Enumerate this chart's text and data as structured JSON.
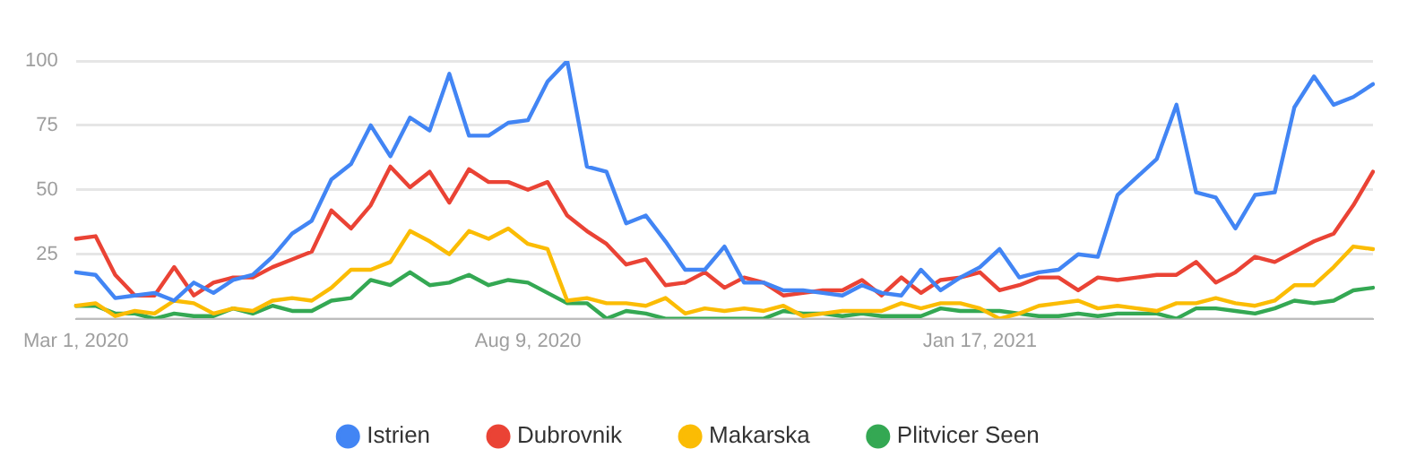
{
  "chart_data": {
    "type": "line",
    "categories": [
      "Mar 1, 2020",
      null,
      null,
      null,
      null,
      null,
      null,
      null,
      null,
      null,
      null,
      null,
      null,
      null,
      null,
      null,
      null,
      null,
      null,
      null,
      null,
      null,
      null,
      "Aug 9, 2020",
      null,
      null,
      null,
      null,
      null,
      null,
      null,
      null,
      null,
      null,
      null,
      null,
      null,
      null,
      null,
      null,
      null,
      null,
      null,
      null,
      null,
      null,
      "Jan 17, 2021",
      null,
      null,
      null,
      null,
      null,
      null,
      null,
      null,
      null,
      null,
      null,
      null,
      null,
      null,
      null,
      null,
      null,
      null,
      null,
      null
    ],
    "series": [
      {
        "name": "Istrien",
        "color": "#4285f4",
        "values": [
          18,
          17,
          8,
          9,
          10,
          7,
          14,
          10,
          15,
          17,
          24,
          33,
          38,
          54,
          60,
          75,
          63,
          78,
          73,
          95,
          71,
          71,
          76,
          77,
          92,
          100,
          59,
          57,
          37,
          40,
          30,
          19,
          19,
          28,
          14,
          14,
          11,
          11,
          10,
          9,
          13,
          10,
          9,
          19,
          11,
          16,
          20,
          27,
          16,
          18,
          19,
          25,
          24,
          48,
          55,
          62,
          83,
          49,
          47,
          35,
          48,
          49,
          82,
          94,
          83,
          86,
          91
        ]
      },
      {
        "name": "Dubrovnik",
        "color": "#ea4335",
        "values": [
          31,
          32,
          17,
          9,
          9,
          20,
          9,
          14,
          16,
          16,
          20,
          23,
          26,
          42,
          35,
          44,
          59,
          51,
          57,
          45,
          58,
          53,
          53,
          50,
          53,
          40,
          34,
          29,
          21,
          23,
          13,
          14,
          18,
          12,
          16,
          14,
          9,
          10,
          11,
          11,
          15,
          9,
          16,
          10,
          15,
          16,
          18,
          11,
          13,
          16,
          16,
          11,
          16,
          15,
          16,
          17,
          17,
          22,
          14,
          18,
          24,
          22,
          26,
          30,
          33,
          44,
          57
        ]
      },
      {
        "name": "Makarska",
        "color": "#fbbc04",
        "values": [
          5,
          6,
          1,
          3,
          2,
          7,
          6,
          2,
          4,
          3,
          7,
          8,
          7,
          12,
          19,
          19,
          22,
          34,
          30,
          25,
          34,
          31,
          35,
          29,
          27,
          7,
          8,
          6,
          6,
          5,
          8,
          2,
          4,
          3,
          4,
          3,
          5,
          1,
          2,
          3,
          3,
          3,
          6,
          4,
          6,
          6,
          4,
          0,
          2,
          5,
          6,
          7,
          4,
          5,
          4,
          3,
          6,
          6,
          8,
          6,
          5,
          7,
          13,
          13,
          20,
          28,
          27
        ]
      },
      {
        "name": "Plitvicer Seen",
        "color": "#34a853",
        "values": [
          5,
          5,
          2,
          2,
          0,
          2,
          1,
          1,
          4,
          2,
          5,
          3,
          3,
          7,
          8,
          15,
          13,
          18,
          13,
          14,
          17,
          13,
          15,
          14,
          10,
          6,
          6,
          0,
          3,
          2,
          0,
          0,
          0,
          0,
          0,
          0,
          3,
          2,
          2,
          1,
          2,
          1,
          1,
          1,
          4,
          3,
          3,
          3,
          2,
          1,
          1,
          2,
          1,
          2,
          2,
          2,
          0,
          4,
          4,
          3,
          2,
          4,
          7,
          6,
          7,
          11,
          12
        ]
      }
    ],
    "ylim": [
      0,
      100
    ],
    "yticks": [
      {
        "value": 0,
        "label": null
      },
      25,
      50,
      75,
      100
    ],
    "grid": "y",
    "legend": "bottom",
    "marker": "none",
    "line_style": "solid"
  }
}
